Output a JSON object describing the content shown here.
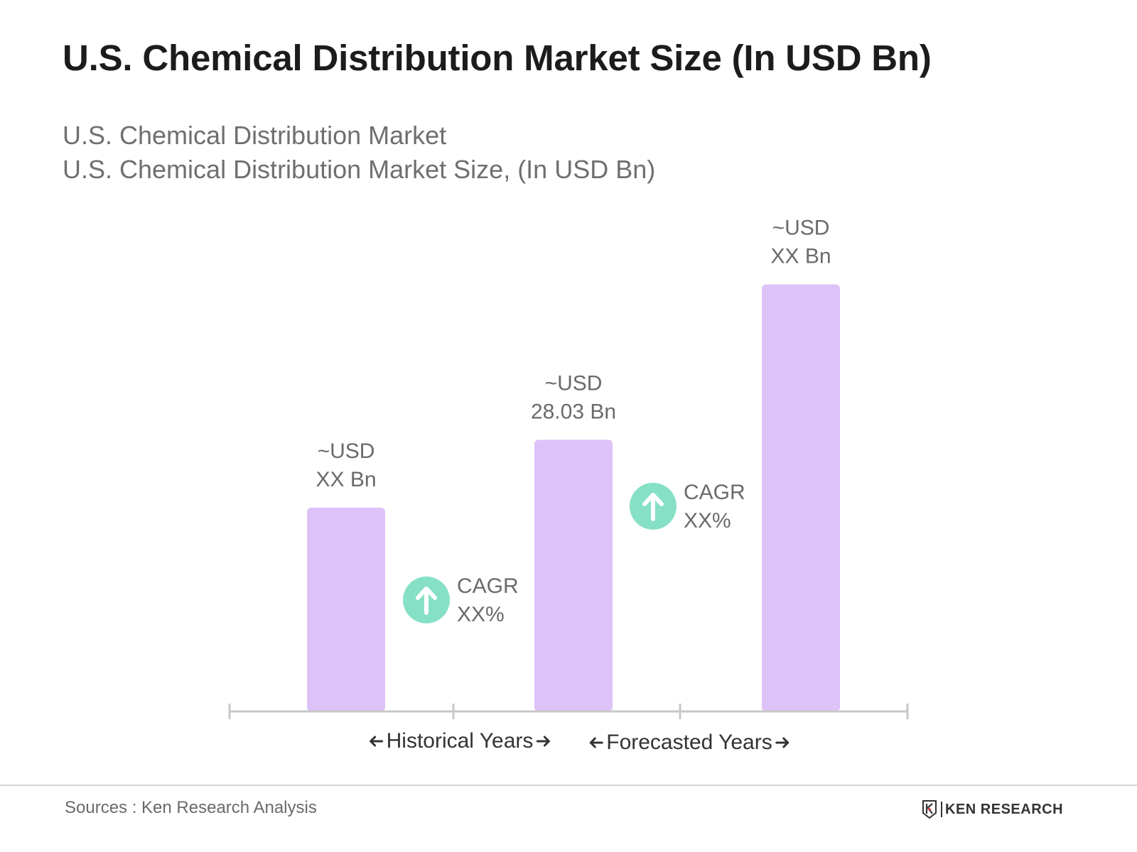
{
  "title": "U.S. Chemical Distribution Market Size (In USD Bn)",
  "subtitle_lines": [
    "U.S. Chemical Distribution Market",
    "U.S. Chemical Distribution Market Size, (In USD Bn)"
  ],
  "chart_data": {
    "type": "bar",
    "categories": [
      "",
      "",
      ""
    ],
    "values": [
      10.5,
      14.0,
      22.0
    ],
    "data_labels": [
      [
        "~USD",
        "XX Bn"
      ],
      [
        "~USD",
        "28.03 Bn"
      ],
      [
        "~USD",
        "XX Bn"
      ]
    ],
    "ylim": [
      0,
      24
    ],
    "grid": false,
    "bar_color": "#ddc2f8",
    "annotations": [
      {
        "type": "cagr",
        "between": [
          0,
          1
        ],
        "lines": [
          "CAGR",
          "XX%"
        ],
        "icon": "arrow-up-icon",
        "color": "#86e0c6"
      },
      {
        "type": "cagr",
        "between": [
          1,
          2
        ],
        "lines": [
          "CAGR",
          "XX%"
        ],
        "icon": "arrow-up-icon",
        "color": "#86e0c6"
      }
    ],
    "periods": [
      {
        "label": "Historical Years",
        "span": [
          0,
          1
        ]
      },
      {
        "label": "Forecasted Years",
        "span": [
          1,
          2
        ]
      }
    ]
  },
  "footer": {
    "source": "Sources : Ken Research Analysis",
    "logo_text": "KEN RESEARCH",
    "logo_icon": "ken-research-logo-icon"
  }
}
